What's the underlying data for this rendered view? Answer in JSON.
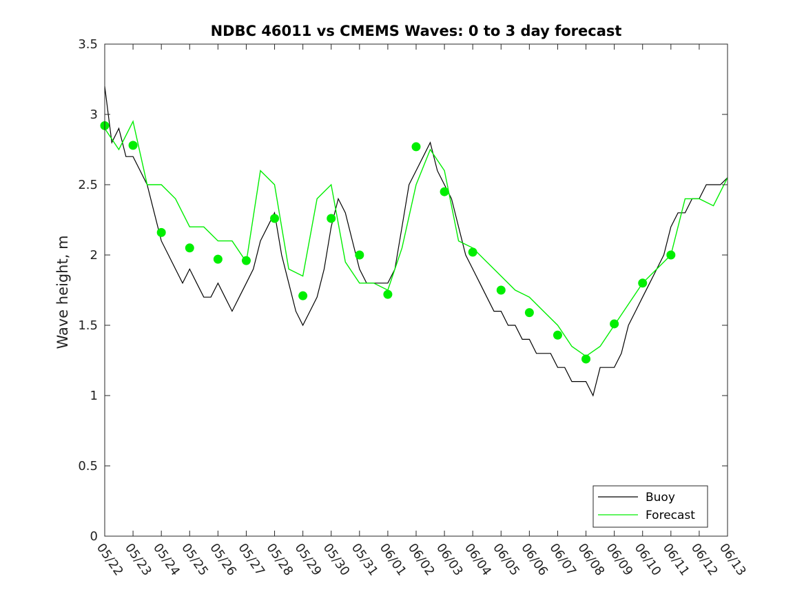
{
  "chart_data": {
    "type": "line",
    "title": "NDBC 46011 vs CMEMS Waves: 0 to 3 day forecast",
    "xlabel": "",
    "ylabel": "Wave height, m",
    "x_categories": [
      "05/22",
      "05/23",
      "05/24",
      "05/25",
      "05/26",
      "05/27",
      "05/28",
      "05/29",
      "05/30",
      "05/31",
      "06/01",
      "06/02",
      "06/03",
      "06/04",
      "06/05",
      "06/06",
      "06/07",
      "06/08",
      "06/09",
      "06/10",
      "06/11",
      "06/12",
      "06/13"
    ],
    "y_ticks": [
      "0",
      "0.5",
      "1",
      "1.5",
      "2",
      "2.5",
      "3",
      "3.5"
    ],
    "ylim": [
      0,
      3.5
    ],
    "xlim_days": [
      0,
      22
    ],
    "grid": false,
    "legend_position": "bottom-right",
    "colors": {
      "buoy": "#000000",
      "forecast": "#00ee00",
      "markers": "#00ee00"
    },
    "series": [
      {
        "name": "Buoy",
        "x": [
          0,
          0.25,
          0.5,
          0.75,
          1,
          1.25,
          1.5,
          1.75,
          2,
          2.25,
          2.5,
          2.75,
          3,
          3.25,
          3.5,
          3.75,
          4,
          4.25,
          4.5,
          4.75,
          5,
          5.25,
          5.5,
          5.75,
          6,
          6.25,
          6.5,
          6.75,
          7,
          7.25,
          7.5,
          7.75,
          8,
          8.25,
          8.5,
          8.75,
          9,
          9.25,
          9.5,
          9.75,
          10,
          10.25,
          10.5,
          10.75,
          11,
          11.25,
          11.5,
          11.75,
          12,
          12.25,
          12.5,
          12.75,
          13,
          13.25,
          13.5,
          13.75,
          14,
          14.25,
          14.5,
          14.75,
          15,
          15.25,
          15.5,
          15.75,
          16,
          16.25,
          16.5,
          16.75,
          17,
          17.25,
          17.5,
          17.75,
          18,
          18.25,
          18.5,
          18.75,
          19,
          19.25,
          19.5,
          19.75,
          20,
          20.25,
          20.5,
          20.75,
          21,
          21.25,
          21.5,
          21.75,
          22
        ],
        "values": [
          3.2,
          2.8,
          2.9,
          2.7,
          2.7,
          2.6,
          2.5,
          2.3,
          2.1,
          2.0,
          1.9,
          1.8,
          1.9,
          1.8,
          1.7,
          1.7,
          1.8,
          1.7,
          1.6,
          1.7,
          1.8,
          1.9,
          2.1,
          2.2,
          2.3,
          2.0,
          1.8,
          1.6,
          1.5,
          1.6,
          1.7,
          1.9,
          2.2,
          2.4,
          2.3,
          2.1,
          1.9,
          1.8,
          1.8,
          1.8,
          1.8,
          1.9,
          2.2,
          2.5,
          2.6,
          2.7,
          2.8,
          2.6,
          2.5,
          2.4,
          2.2,
          2.0,
          1.9,
          1.8,
          1.7,
          1.6,
          1.6,
          1.5,
          1.5,
          1.4,
          1.4,
          1.3,
          1.3,
          1.3,
          1.2,
          1.2,
          1.1,
          1.1,
          1.1,
          1.0,
          1.2,
          1.2,
          1.2,
          1.3,
          1.5,
          1.6,
          1.7,
          1.8,
          1.9,
          2.0,
          2.2,
          2.3,
          2.3,
          2.4,
          2.4,
          2.5,
          2.5,
          2.5,
          2.55
        ]
      },
      {
        "name": "Forecast",
        "x": [
          0,
          0.5,
          1,
          1.5,
          2,
          2.5,
          3,
          3.5,
          4,
          4.5,
          5,
          5.5,
          6,
          6.5,
          7,
          7.5,
          8,
          8.5,
          9,
          9.5,
          10,
          10.5,
          11,
          11.5,
          12,
          12.5,
          13,
          13.5,
          14,
          14.5,
          15,
          15.5,
          16,
          16.5,
          17,
          17.5,
          18,
          18.5,
          19,
          19.5,
          20,
          20.5,
          21,
          21.5,
          22
        ],
        "values": [
          2.9,
          2.75,
          2.95,
          2.5,
          2.5,
          2.4,
          2.2,
          2.2,
          2.1,
          2.1,
          1.95,
          2.6,
          2.5,
          1.9,
          1.85,
          2.4,
          2.5,
          1.95,
          1.8,
          1.8,
          1.75,
          2.05,
          2.5,
          2.75,
          2.6,
          2.1,
          2.05,
          1.95,
          1.85,
          1.75,
          1.7,
          1.6,
          1.5,
          1.35,
          1.28,
          1.35,
          1.5,
          1.65,
          1.8,
          1.9,
          2.0,
          2.4,
          2.4,
          2.35,
          2.55
        ]
      }
    ],
    "markers": {
      "name": "Forecast initial points",
      "x": [
        0,
        1,
        2,
        3,
        4,
        5,
        6,
        7,
        8,
        9,
        10,
        11,
        12,
        13,
        14,
        15,
        16,
        17,
        18,
        19,
        20
      ],
      "values": [
        2.92,
        2.78,
        2.16,
        2.05,
        1.97,
        1.96,
        2.26,
        1.71,
        2.26,
        2.0,
        1.72,
        2.77,
        2.45,
        2.02,
        1.75,
        1.59,
        1.43,
        1.26,
        1.51,
        1.8,
        2.0
      ]
    },
    "legend": {
      "buoy_label": "Buoy",
      "forecast_label": "Forecast"
    }
  }
}
